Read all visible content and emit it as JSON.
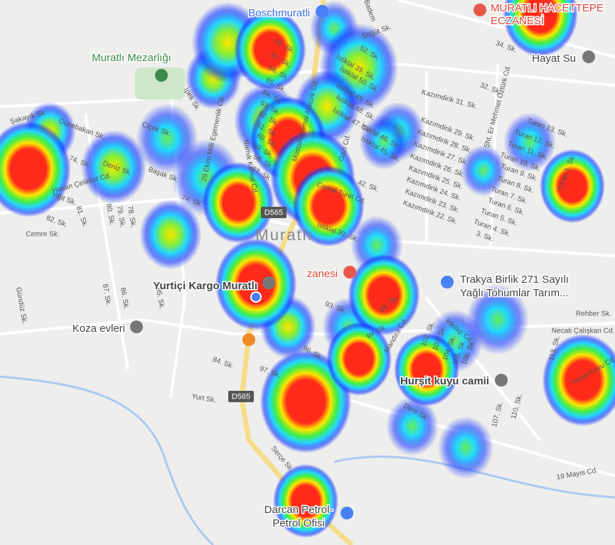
{
  "map": {
    "town": "Muratlı",
    "road_shields": [
      "D565",
      "D565"
    ],
    "pois": {
      "boschmuratli": "Boschmuratli",
      "eczane": [
        "MURATLI HACETTEPE",
        "ECZANESİ"
      ],
      "hayat_su": "Hayat Su",
      "mezarlik": "Muratlı Mezarlığı",
      "kargo": "Yurtiçi Kargo Muratlı",
      "koza": "Koza evleri",
      "zanesi": "zanesi",
      "trakya": [
        "Trakya Birlik 271 Sayılı",
        "Yağlı Tohumlar Tarım..."
      ],
      "camii": "Hurşit kuyu camii",
      "petrol": [
        "Darcan Petrol-",
        "Petrol Ofisi"
      ]
    },
    "streets": [
      "68. Sk.",
      "67. Sk.",
      "66. Sk.",
      "65. Sk.",
      "64. Sk.",
      "63. Sk.",
      "62. Sk.",
      "61. Sk.",
      "60. Sk.",
      "59. Sk.",
      "58. Sk.",
      "57. Sk.",
      "Söğüt Sk.",
      "52. Sk.",
      "İstiklal 39. Sk.",
      "İstiklal 50. Sk.",
      "İstiklal 49. Sk.",
      "İstiklal 48. Sk.",
      "İstiklal 47. Sk.",
      "İstiklal 46. Sk.",
      "İstiklal 45. Sk.",
      "Mustafa Kemal Atatürk Cd.",
      "Gazi Cd.",
      "29 Ekim Milli Egemenlik Cd.",
      "Namık Kemal Cd.",
      "İpek Sk.",
      "Şakayık Sk.",
      "Günebakan Sk.",
      "Çiçek Sk.",
      "74. Sk.",
      "Deniz Sk.",
      "Başak Sk.",
      "Hasan Çelikkol Cd.",
      "Yiğit Sk.",
      "74. Sk.",
      "82. Sk.",
      "81. Sk.",
      "80. Sk.",
      "79. Sk.",
      "78. Sk.",
      "Cemre Sk.",
      "Cemal Türel Cd.",
      "42. Sk.",
      "İstiklal 39. Sk.",
      "Kazımdirik 31. Sk.",
      "Kazımdirik 29. Sk.",
      "Kazımdirik 28. Sk.",
      "Kazımdirik 27. Sk.",
      "Kazımdirik 26. Sk.",
      "Kazımdirik 25. Sk.",
      "Kazımdirik 24. Sk.",
      "Kazımdirik 23. Sk.",
      "Kazımdirik 22. Sk.",
      "Şht. Er Mehmet Öztürk Cd.",
      "Turan 13. Sk.",
      "Turan 12. Sk.",
      "Turan 11. Sk.",
      "Turan 10. Sk.",
      "Turan 9. Sk.",
      "Turan 8. Sk.",
      "Turan 7. Sk.",
      "Turan 6. Sk.",
      "Turan 5. Sk.",
      "Turan 4. Sk.",
      "3. Sk.",
      "Turan 1. Sk.",
      "34. Sk.",
      "32. Sk.",
      "87. Sk.",
      "86. Sk.",
      "85. Sk.",
      "Gündüz Sk.",
      "93. Sk.",
      "98. Sk.",
      "99. Sk.",
      "Mandıra Cd.",
      "96. Sk.",
      "97. Sk.",
      "84. Sk.",
      "Yurt Sk.",
      "102. Sk.",
      "103. Sk.",
      "104. Sk.",
      "105. Sk.",
      "106. Sk.",
      "İnkılap Cd.",
      "Rehber Sk.",
      "Necati Çalışkan Cd.",
      "113. Sk.",
      "Hurşit Kuyu Cd.",
      "110. Sk.",
      "107. Sk.",
      "Dere Sk.",
      "Serçe Sk.",
      "19 Mayıs Cd.",
      "Badem"
    ]
  }
}
